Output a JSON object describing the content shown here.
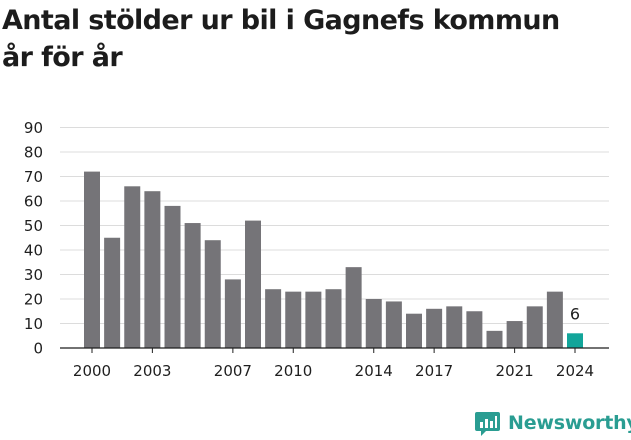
{
  "chart_data": {
    "type": "bar",
    "title_lines": [
      "Antal stölder ur bil i Gagnefs kommun",
      "år för år"
    ],
    "xlabel": "",
    "ylabel": "",
    "categories": [
      "2000",
      "2001",
      "2002",
      "2003",
      "2004",
      "2005",
      "2006",
      "2007",
      "2008",
      "2009",
      "2010",
      "2011",
      "2012",
      "2013",
      "2014",
      "2015",
      "2016",
      "2017",
      "2018",
      "2019",
      "2020",
      "2021",
      "2022",
      "2023",
      "2024"
    ],
    "values": [
      72,
      45,
      66,
      64,
      58,
      51,
      44,
      28,
      52,
      24,
      23,
      23,
      24,
      33,
      20,
      19,
      14,
      16,
      17,
      15,
      7,
      11,
      17,
      23,
      6
    ],
    "x_tick_labels": [
      "2000",
      "2003",
      "2007",
      "2010",
      "2014",
      "2017",
      "2021",
      "2024"
    ],
    "y_ticks": [
      0,
      10,
      20,
      30,
      40,
      50,
      60,
      70,
      80,
      90
    ],
    "ylim": [
      0,
      90
    ],
    "grid": true,
    "bar_color": "#757478",
    "highlight_color": "#12a59a",
    "highlight_index": 24,
    "highlight_label": "6"
  },
  "branding": {
    "name": "Newsworthy",
    "color": "#2a9d92",
    "icon": "newsworthy-chart-icon"
  }
}
